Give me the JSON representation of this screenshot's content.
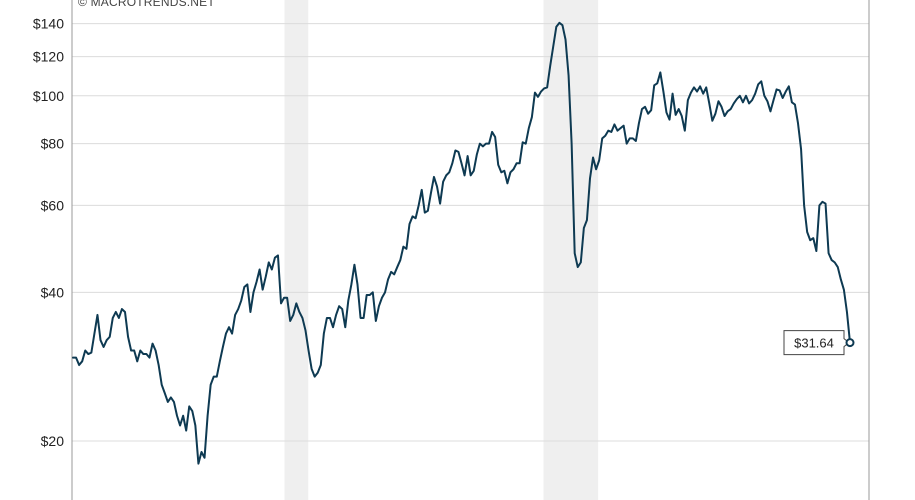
{
  "credit": "© MACROTRENDS.NET",
  "chart_data": {
    "type": "line",
    "title": "",
    "xlabel": "",
    "ylabel": "",
    "y_scale": "log",
    "ylim": [
      17,
      145
    ],
    "yticks": [
      {
        "value": 20,
        "label": "$20"
      },
      {
        "value": 40,
        "label": "$40"
      },
      {
        "value": 60,
        "label": "$60"
      },
      {
        "value": 80,
        "label": "$80"
      },
      {
        "value": 100,
        "label": "$100"
      },
      {
        "value": 120,
        "label": "$120"
      },
      {
        "value": 140,
        "label": "$140"
      }
    ],
    "grid": true,
    "line_color": "#0e3a52",
    "shade_color": "#efefef",
    "x_range": [
      0,
      327
    ],
    "shaded_ranges": [
      [
        89,
        99
      ],
      [
        198,
        221
      ]
    ],
    "series": [
      {
        "values": [
          29.5,
          29.5,
          28.5,
          29,
          30.5,
          30,
          30.2,
          33,
          36,
          32,
          31,
          32,
          32.5,
          35.5,
          36.5,
          35.5,
          37,
          36.5,
          32.5,
          30.5,
          30.5,
          29,
          30.5,
          30,
          30,
          29.5,
          31.5,
          30.5,
          28.5,
          26,
          25,
          24,
          24.5,
          24,
          22.5,
          21.5,
          22.5,
          21,
          23.5,
          23,
          21.5,
          18,
          19,
          18.5,
          22.5,
          26,
          27,
          27,
          29,
          31,
          33,
          34,
          33,
          36,
          37,
          38.5,
          41,
          41.5,
          36.5,
          40,
          42,
          44.5,
          40.5,
          43,
          46,
          44.5,
          47,
          47.5,
          38,
          39,
          39,
          35,
          36,
          38,
          36.5,
          35.5,
          33.5,
          30.5,
          28,
          27,
          27.5,
          28.5,
          33,
          35.5,
          35.5,
          34,
          36,
          37.5,
          37,
          34,
          38.5,
          41.5,
          45.5,
          41.5,
          35.5,
          35.5,
          39.5,
          39.5,
          40,
          35,
          37.5,
          39,
          40,
          42.5,
          44,
          43.5,
          45,
          46.5,
          49.5,
          49,
          55,
          57,
          56.5,
          60,
          64.5,
          58,
          58.5,
          63.5,
          68.5,
          65.5,
          60.5,
          67,
          69,
          70,
          73,
          77.5,
          77,
          73,
          69,
          75.5,
          69,
          70.5,
          76,
          80,
          79,
          80,
          80,
          84.5,
          82.5,
          72.5,
          70,
          70.5,
          66.5,
          70,
          71,
          73,
          73,
          80.5,
          80,
          86,
          90.5,
          101.5,
          99.5,
          102,
          103.5,
          104,
          115,
          126,
          138,
          140.5,
          139,
          130,
          110,
          80,
          48,
          45,
          46,
          54,
          56,
          68,
          75,
          71,
          74,
          82,
          83,
          85,
          84.5,
          87.5,
          85,
          86,
          87,
          80,
          82,
          82,
          81,
          88,
          94,
          95,
          92,
          93.5,
          105,
          106,
          111.5,
          102,
          92.5,
          89.5,
          101,
          91.5,
          94,
          91,
          85,
          98,
          101.5,
          104,
          102,
          104.5,
          101,
          104,
          96.5,
          89,
          92,
          97.5,
          95,
          91,
          93,
          94,
          96.5,
          98.5,
          100,
          97,
          100,
          96.5,
          98,
          101,
          105.5,
          107,
          100,
          97.5,
          93,
          98,
          103,
          102.5,
          99,
          102,
          104.5,
          97,
          96,
          88,
          78,
          60,
          53,
          51,
          51.5,
          48.5,
          60,
          61,
          60.5,
          48,
          46.5,
          46,
          45,
          42.5,
          40.5,
          36.5,
          31.64
        ]
      }
    ],
    "last_value_label": "$31.64"
  }
}
